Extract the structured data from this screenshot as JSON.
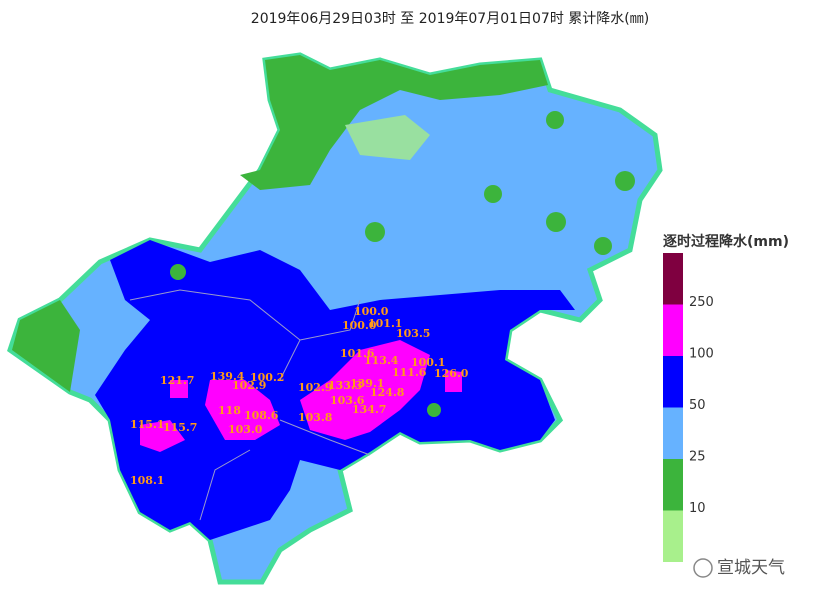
{
  "title": "2019年06月29日03时  至  2019年07月01日07时  累计降水(㎜)",
  "legend": {
    "title": "逐时过程降水(mm)",
    "colors": [
      "#7f0040",
      "#ff00ff",
      "#0000ff",
      "#66b2ff",
      "#3cb43c",
      "#a8f08c"
    ],
    "ticks": [
      250,
      100,
      50,
      25,
      10
    ]
  },
  "stations": [
    "100.0",
    "100.0",
    "101.1",
    "103.5",
    "101.6",
    "113.4",
    "100.1",
    "111.6",
    "126.0",
    "121.7",
    "139.4",
    "100.2",
    "102.9",
    "102.9",
    "133.3",
    "139.1",
    "124.8",
    "103.6",
    "118",
    "108.6",
    "103.8",
    "134.7",
    "103.0",
    "115.1",
    "115.7",
    "108.1"
  ],
  "watermark": "宣城天气"
}
